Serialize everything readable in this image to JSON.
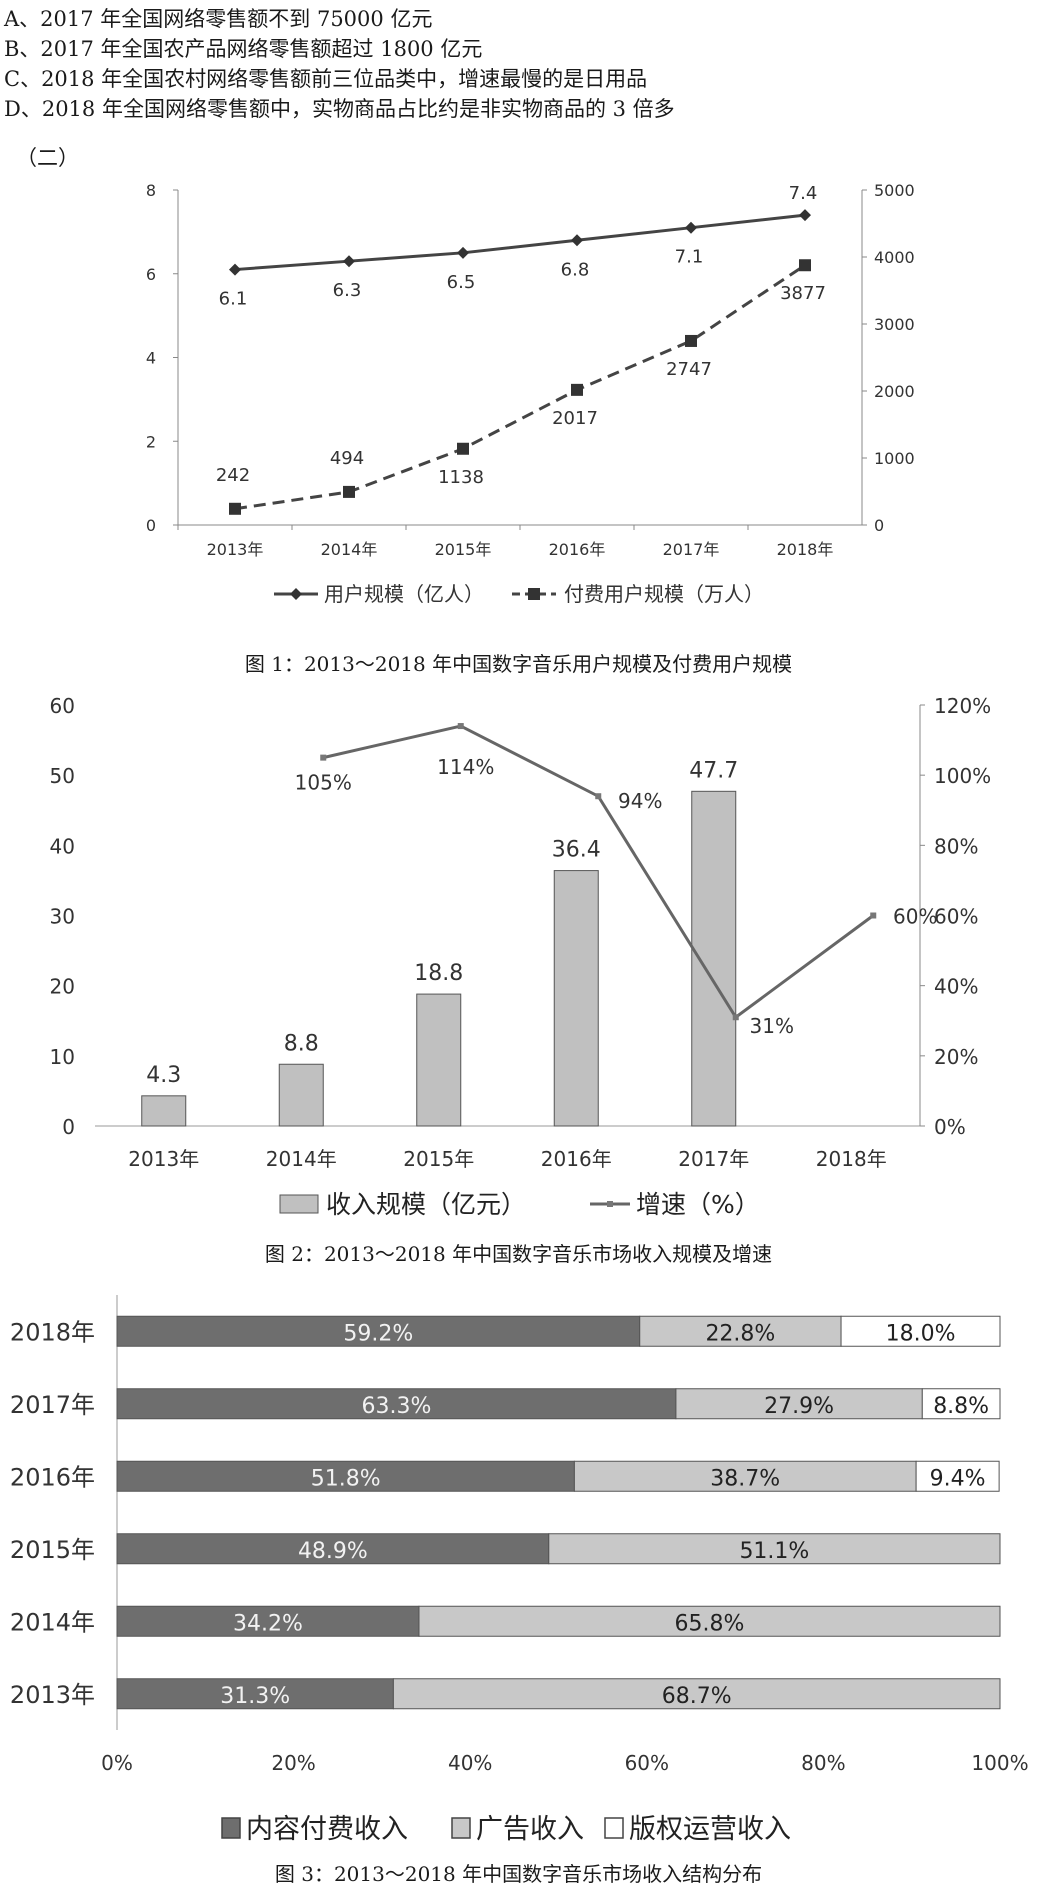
{
  "options": [
    "A、2017 年全国网络零售额不到 75000 亿元",
    "B、2017 年全国农产品网络零售额超过 1800 亿元",
    "C、2018 年全国农村网络零售额前三位品类中，增速最慢的是日用品",
    "D、2018 年全国网络零售额中，实物商品占比约是非实物商品的 3 倍多"
  ],
  "section_label": "（二）",
  "captions": [
    "图 1：2013～2018 年中国数字音乐用户规模及付费用户规模",
    "图 2：2013～2018 年中国数字音乐市场收入规模及增速",
    "图 3：2013～2018 年中国数字音乐市场收入结构分布"
  ],
  "chart_data": [
    {
      "type": "line",
      "x": [
        "2013年",
        "2014年",
        "2015年",
        "2016年",
        "2017年",
        "2018年"
      ],
      "series": [
        {
          "name": "用户规模（亿人）",
          "axis": "left",
          "values": [
            6.1,
            6.3,
            6.5,
            6.8,
            7.1,
            7.4
          ],
          "labels": [
            "6.1",
            "6.3",
            "6.5",
            "6.8",
            "7.1",
            "7.4"
          ],
          "style": "solid",
          "marker": "diamond",
          "color": "#444444"
        },
        {
          "name": "付费用户规模（万人）",
          "axis": "right",
          "values": [
            242,
            494,
            1138,
            2017,
            2747,
            3877
          ],
          "labels": [
            "242",
            "494",
            "1138",
            "2017",
            "2747",
            "3877"
          ],
          "style": "dashed",
          "marker": "square",
          "color": "#444444"
        }
      ],
      "y_left": {
        "range": [
          0,
          8
        ],
        "ticks": [
          "0",
          "2",
          "4",
          "6",
          "8"
        ]
      },
      "y_right": {
        "range": [
          0,
          5000
        ],
        "ticks": [
          "0",
          "1000",
          "2000",
          "3000",
          "4000",
          "5000"
        ]
      },
      "legend": "bottom",
      "grid": false
    },
    {
      "type": "bar",
      "categories": [
        "2013年",
        "2014年",
        "2015年",
        "2016年",
        "2017年",
        "2018年"
      ],
      "series": [
        {
          "name": "收入规模（亿元）",
          "axis": "left",
          "kind": "bar",
          "values": [
            4.3,
            8.8,
            18.8,
            36.4,
            47.7,
            null
          ],
          "labels": [
            "4.3",
            "8.8",
            "18.8",
            "36.4",
            "47.7",
            ""
          ],
          "color": "#c0c0c0"
        },
        {
          "name": "增速（%）",
          "axis": "right",
          "kind": "line",
          "values": [
            null,
            105,
            114,
            94,
            31,
            60
          ],
          "labels": [
            "",
            "105%",
            "114%",
            "94%",
            "31%",
            "60%"
          ],
          "color": "#666666"
        }
      ],
      "y_left": {
        "range": [
          0,
          60
        ],
        "ticks": [
          "0",
          "10",
          "20",
          "30",
          "40",
          "50",
          "60"
        ]
      },
      "y_right": {
        "range": [
          0,
          120
        ],
        "ticks": [
          "0%",
          "20%",
          "40%",
          "60%",
          "80%",
          "100%",
          "120%"
        ]
      },
      "legend": "bottom",
      "grid": false
    },
    {
      "type": "bar",
      "orientation": "horizontal",
      "stacked": true,
      "categories": [
        "2018年",
        "2017年",
        "2016年",
        "2015年",
        "2014年",
        "2013年"
      ],
      "series": [
        {
          "name": "内容付费收入",
          "values": [
            59.2,
            63.3,
            51.8,
            48.9,
            34.2,
            31.3
          ],
          "labels": [
            "59.2%",
            "63.3%",
            "51.8%",
            "48.9%",
            "34.2%",
            "31.3%"
          ],
          "color": "#6e6e6e"
        },
        {
          "name": "广告收入",
          "values": [
            22.8,
            27.9,
            38.7,
            51.1,
            65.8,
            68.7
          ],
          "labels": [
            "22.8%",
            "27.9%",
            "38.7%",
            "51.1%",
            "65.8%",
            "68.7%"
          ],
          "color": "#c8c8c8"
        },
        {
          "name": "版权运营收入",
          "values": [
            18.0,
            8.8,
            9.4,
            0,
            0,
            0
          ],
          "labels": [
            "18.0%",
            "8.8%",
            "9.4%",
            "",
            "",
            ""
          ],
          "color": "#ffffff"
        }
      ],
      "x_axis": {
        "range": [
          0,
          100
        ],
        "ticks": [
          "0%",
          "20%",
          "40%",
          "60%",
          "80%",
          "100%"
        ]
      },
      "legend": "bottom",
      "grid": false
    }
  ]
}
